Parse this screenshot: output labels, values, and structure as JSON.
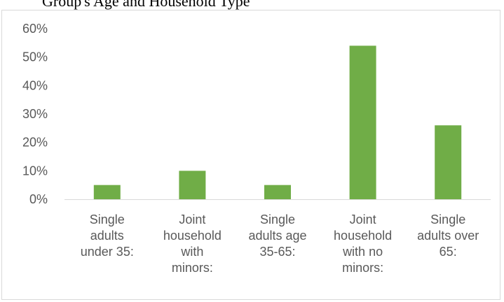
{
  "caption": "Group's Age and Household Type",
  "chart_data": {
    "type": "bar",
    "categories": [
      [
        "Single",
        "adults",
        "under 35:"
      ],
      [
        "Joint",
        "household",
        "with",
        "minors:"
      ],
      [
        "Single",
        "adults age",
        "35-65:"
      ],
      [
        "Joint",
        "household",
        "with no",
        "minors:"
      ],
      [
        "Single",
        "adults over",
        "65:"
      ]
    ],
    "values": [
      5,
      10,
      5,
      54,
      26
    ],
    "ylim": [
      0,
      60
    ],
    "yticks": [
      "0%",
      "10%",
      "20%",
      "30%",
      "40%",
      "50%",
      "60%"
    ],
    "bar_color": "#70ad47",
    "grid": false
  }
}
